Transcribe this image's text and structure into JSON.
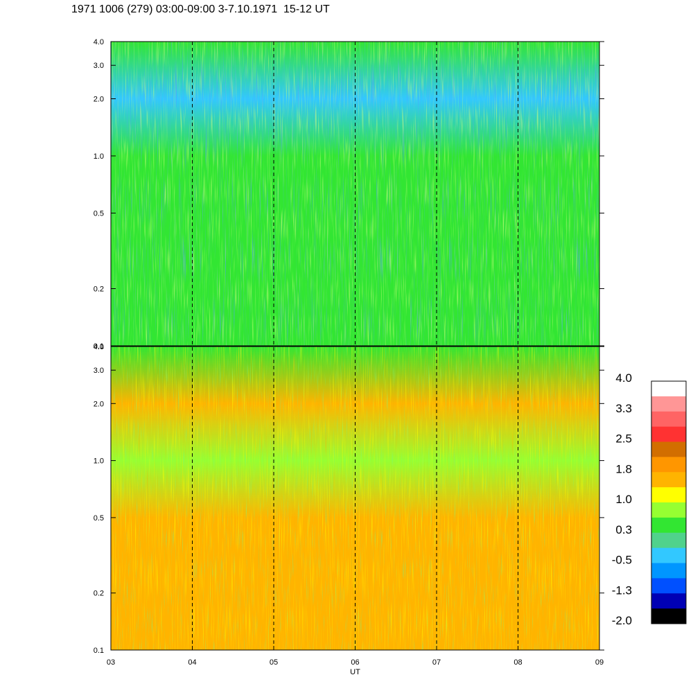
{
  "title": "1971 1006 (279) 03:00-09:00 3-7.10.1971  15-12 UT",
  "chart_data": {
    "type": "heatmap",
    "title": "1971 1006 (279) 03:00-09:00 3-7.10.1971  15-12 UT",
    "xlabel": "UT",
    "x_ticks": [
      "03",
      "04",
      "05",
      "06",
      "07",
      "08",
      "09"
    ],
    "x_range": [
      3,
      9
    ],
    "y_scale": "log",
    "y_range": [
      0.1,
      4.0
    ],
    "y_ticks": [
      "0.1",
      "0.2",
      "0.5",
      "1.0",
      "2.0",
      "3.0",
      "4.0"
    ],
    "y_tick_values": [
      0.1,
      0.2,
      0.5,
      1.0,
      2.0,
      3.0,
      4.0
    ],
    "vertical_dashed_lines_at": [
      4,
      5,
      6,
      7,
      8
    ],
    "panels": [
      {
        "name": "upper",
        "dominant_level_by_y": [
          {
            "y": 0.1,
            "level": 0.3
          },
          {
            "y": 0.2,
            "level": 0.3
          },
          {
            "y": 0.5,
            "level": 0.3
          },
          {
            "y": 1.0,
            "level": 0.3
          },
          {
            "y": 2.0,
            "level": -0.5
          },
          {
            "y": 4.0,
            "level": 0.3
          }
        ]
      },
      {
        "name": "lower",
        "dominant_level_by_y": [
          {
            "y": 0.1,
            "level": 1.8
          },
          {
            "y": 0.2,
            "level": 1.8
          },
          {
            "y": 0.5,
            "level": 1.8
          },
          {
            "y": 1.0,
            "level": 1.0
          },
          {
            "y": 2.0,
            "level": 1.8
          },
          {
            "y": 4.0,
            "level": 0.3
          }
        ]
      }
    ],
    "colorbar": {
      "tick_labels": [
        "4.0",
        "3.3",
        "2.5",
        "1.8",
        "1.0",
        "0.3",
        "-0.5",
        "-1.3",
        "-2.0"
      ],
      "range": [
        -2.0,
        4.0
      ],
      "colors": [
        "#ffffff",
        "#ff9696",
        "#ff6464",
        "#ff3232",
        "#d26e00",
        "#ff9600",
        "#ffb400",
        "#ffff00",
        "#96ff32",
        "#32e632",
        "#50d28c",
        "#32c8ff",
        "#0096ff",
        "#0050ff",
        "#0000b4",
        "#000000"
      ]
    }
  }
}
